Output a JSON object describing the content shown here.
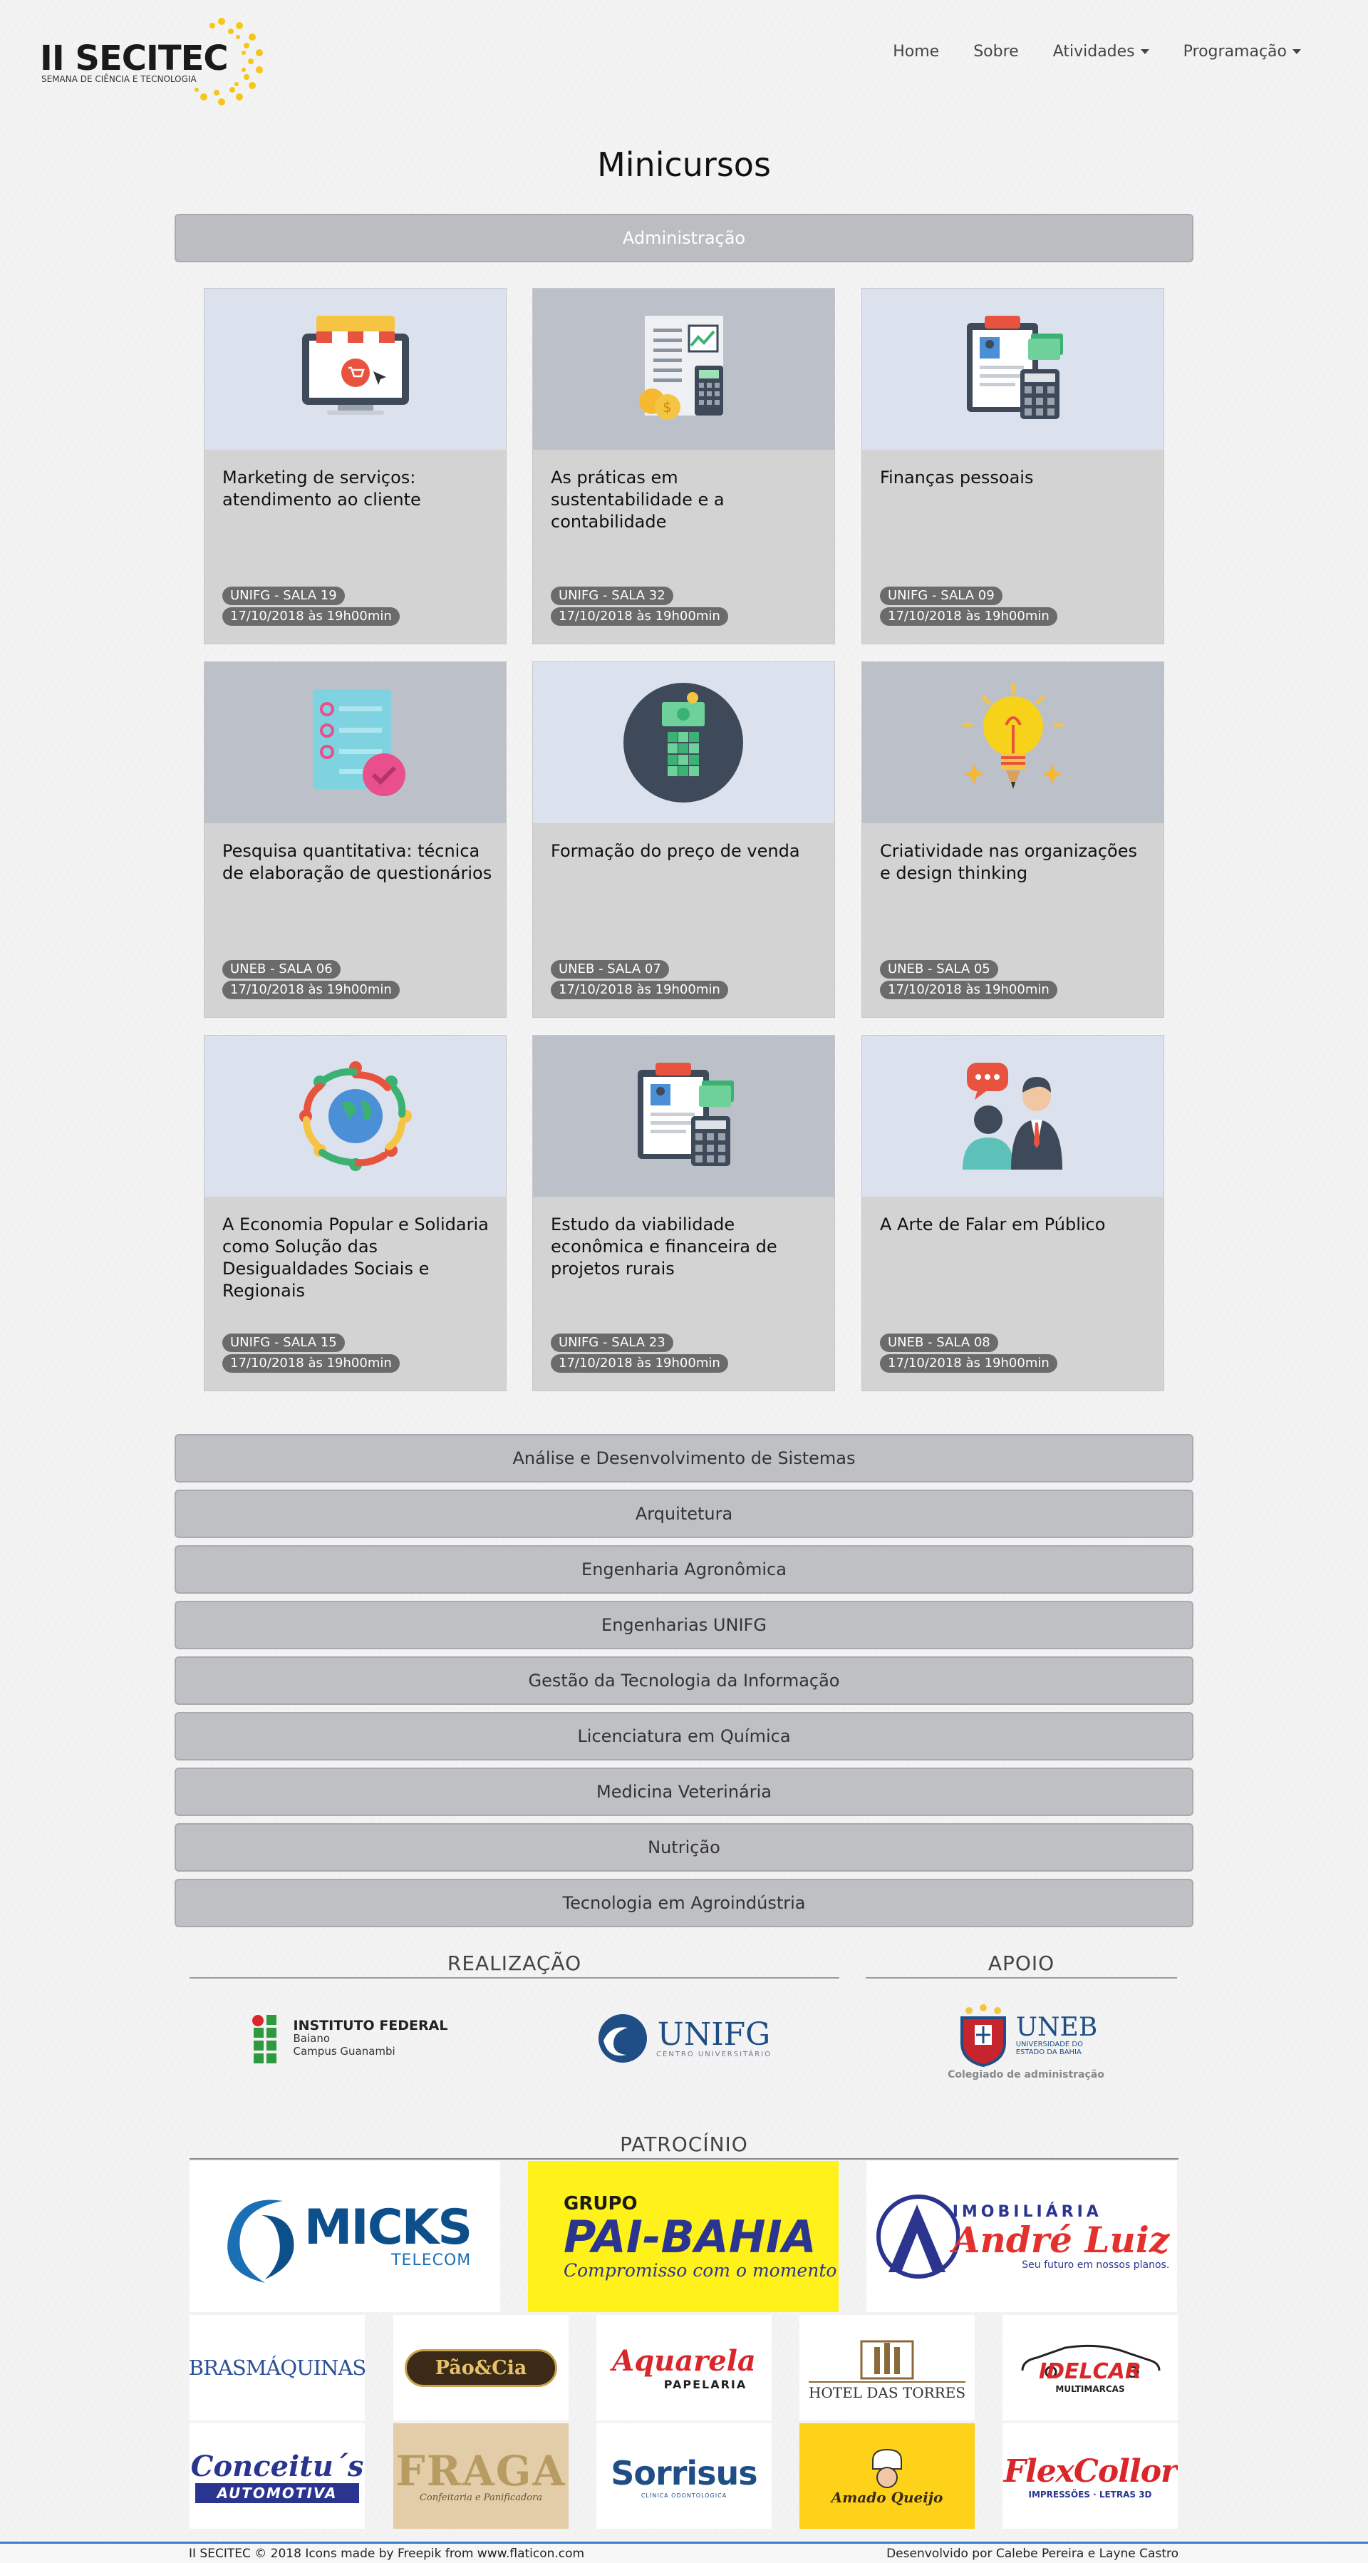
{
  "nav": {
    "brand_title": "II SECITEC",
    "brand_sub": "SEMANA DE CIÊNCIA E TECNOLOGIA",
    "links": [
      "Home",
      "Sobre",
      "Atividades",
      "Programação"
    ]
  },
  "page_title": "Minicursos",
  "active_section": "Administração",
  "cards": [
    {
      "title": "Marketing de serviços: atendimento ao cliente",
      "room": "UNIFG - SALA 19",
      "date": "17/10/2018 às 19h00min",
      "icon": "online-shop-icon"
    },
    {
      "title": "As práticas em sustentabilidade e a contabilidade",
      "room": "UNIFG - SALA 32",
      "date": "17/10/2018 às 19h00min",
      "icon": "accounting-icon"
    },
    {
      "title": "Finanças pessoais",
      "room": "UNIFG - SALA 09",
      "date": "17/10/2018 às 19h00min",
      "icon": "finance-clipboard-icon"
    },
    {
      "title": "Pesquisa quantitativa: técnica de elaboração de questionários",
      "room": "UNEB - SALA 06",
      "date": "17/10/2018 às 19h00min",
      "icon": "checklist-icon"
    },
    {
      "title": "Formação do preço de venda",
      "room": "UNEB - SALA 07",
      "date": "17/10/2018 às 19h00min",
      "icon": "money-cube-icon"
    },
    {
      "title": "Criatividade nas organizações e design thinking",
      "room": "UNEB - SALA 05",
      "date": "17/10/2018 às 19h00min",
      "icon": "lightbulb-icon"
    },
    {
      "title": "A Economia Popular e Solidaria como Solução das Desigualdades Sociais e Regionais",
      "room": "UNIFG - SALA 15",
      "date": "17/10/2018 às 19h00min",
      "icon": "people-globe-icon"
    },
    {
      "title": "Estudo da viabilidade econômica e financeira de projetos rurais",
      "room": "UNIFG - SALA 23",
      "date": "17/10/2018 às 19h00min",
      "icon": "finance-clipboard-icon"
    },
    {
      "title": "A Arte de Falar em Público",
      "room": "UNEB - SALA 08",
      "date": "17/10/2018 às 19h00min",
      "icon": "public-speaking-icon"
    }
  ],
  "sections": [
    "Análise e Desenvolvimento de Sistemas",
    "Arquitetura",
    "Engenharia Agronômica",
    "Engenharias UNIFG",
    "Gestão da Tecnologia da Informação",
    "Licenciatura em Química",
    "Medicina Veterinária",
    "Nutrição",
    "Tecnologia em Agroindústria"
  ],
  "realizacao": {
    "heading": "REALIZAÇÃO",
    "if_name": "INSTITUTO FEDERAL",
    "if_line2": "Baiano",
    "if_line3": "Campus Guanambi",
    "unifg_name": "UNIFG",
    "unifg_sub": "CENTRO UNIVERSITÁRIO"
  },
  "apoio": {
    "heading": "APOIO",
    "uneb_name": "UNEB",
    "uneb_sub1": "UNIVERSIDADE DO",
    "uneb_sub2": "ESTADO DA BAHIA",
    "uneb_caption": "Colegiado de administração"
  },
  "patrocinio": {
    "heading": "PATROCÍNIO",
    "micks": "MICKS",
    "micks_sub": "TELECOM",
    "paibahia_top": "GRUPO",
    "paibahia": "PAI-BAHIA",
    "paibahia_sub": "Compromisso com o momento",
    "andre_top": "IMOBILIÁRIA",
    "andre": "André Luiz",
    "andre_sub": "Seu futuro em nossos planos.",
    "brasmaquinas": "BRASMÁQUINAS",
    "paocia": "Pão&Cia",
    "aquarela": "Aquarela",
    "aquarela_sub": "PAPELARIA",
    "hotel": "HOTEL DAS TORRES",
    "idelcar": "IDELCAR",
    "idelcar_sub": "MULTIMARCAS",
    "conceitus": "Conceitu´s",
    "conceitus_sub": "AUTOMOTIVA",
    "fraga": "FRAGA",
    "fraga_sub": "Confeitaria e Panificadora",
    "sorrisus": "Sorrisus",
    "sorrisus_sub": "CLÍNICA ODONTOLÓGICA",
    "amado": "Amado Queijo",
    "flexcollor": "FlexCollor",
    "flexcollor_sub": "IMPRESSÕES · LETRAS 3D"
  },
  "footer": {
    "left": "II SECITEC © 2018 Icons made by Freepik from www.flaticon.com",
    "right": "Desenvolvido por Calebe Pereira e Layne Castro"
  }
}
